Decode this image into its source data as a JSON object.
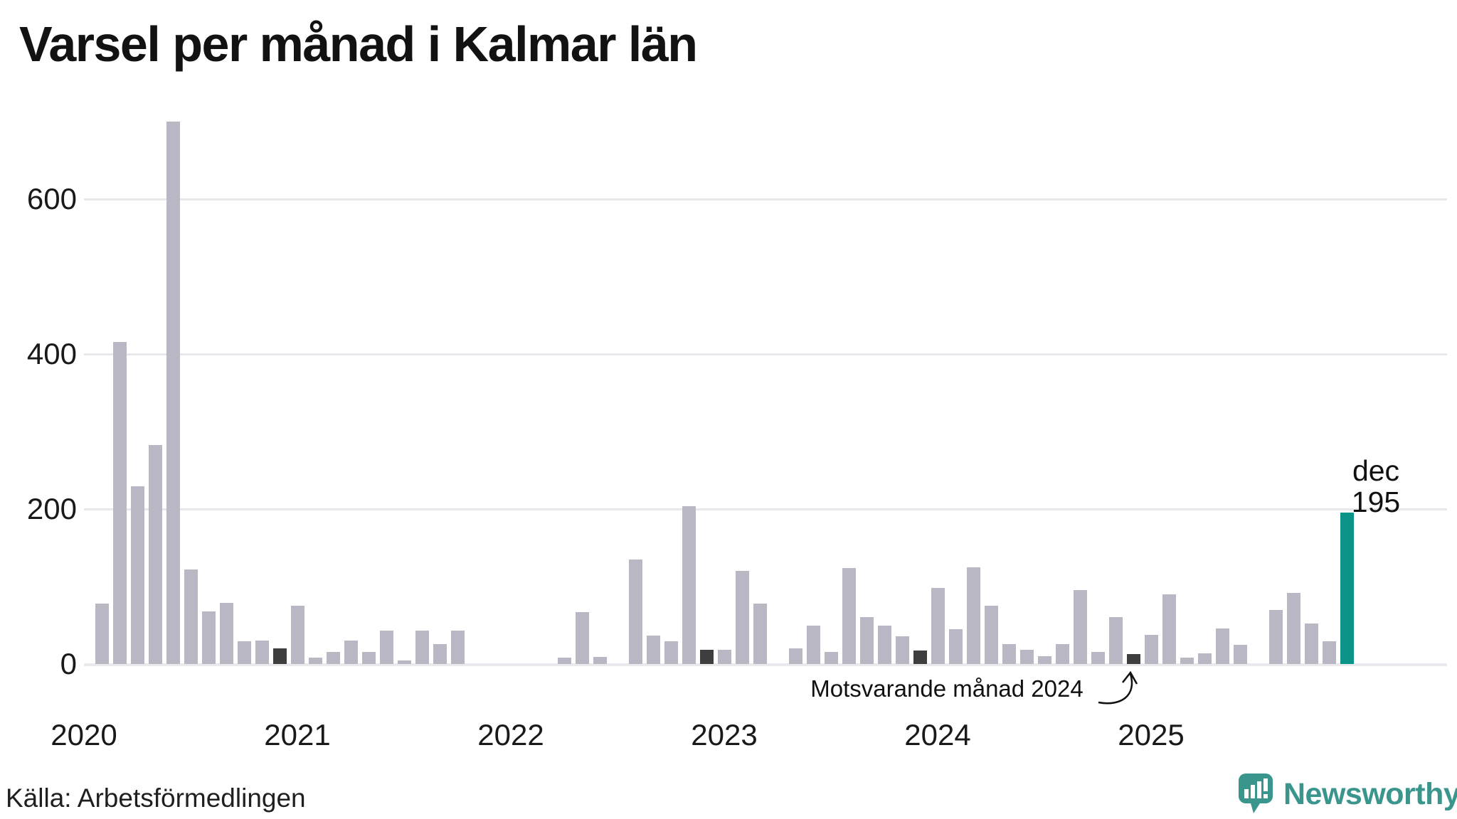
{
  "title": "Varsel per månad i Kalmar län",
  "source_note": "Källa: Arbetsförmedlingen",
  "brand": {
    "name": "Newsworthy",
    "color": "#3a958d"
  },
  "annotation": {
    "text": "Motsvarande månad 2024"
  },
  "highlight_label": {
    "month": "dec",
    "value": "195"
  },
  "colors": {
    "bar_default": "#b9b7c4",
    "bar_dark": "#3e3e3e",
    "bar_highlight": "#0d9488",
    "gridline": "#e8e8ec",
    "text": "#1a1a1a"
  },
  "chart_data": {
    "type": "bar",
    "title": "Varsel per månad i Kalmar län",
    "xlabel": "",
    "ylabel": "",
    "x_start": {
      "year": 2020,
      "month": 1
    },
    "months_per_year": 12,
    "values": [
      0,
      78,
      416,
      229,
      283,
      700,
      122,
      68,
      79,
      29,
      30,
      20,
      75,
      8,
      16,
      30,
      16,
      43,
      5,
      43,
      26,
      43,
      0,
      0,
      0,
      0,
      0,
      8,
      67,
      9,
      0,
      135,
      37,
      29,
      204,
      18,
      18,
      120,
      78,
      0,
      20,
      50,
      16,
      124,
      61,
      50,
      36,
      17,
      98,
      45,
      125,
      75,
      26,
      18,
      10,
      26,
      95,
      16,
      61,
      13,
      38,
      90,
      8,
      14,
      46,
      25,
      0,
      70,
      92,
      52,
      29,
      195
    ],
    "year_labels": [
      "2020",
      "2021",
      "2022",
      "2023",
      "2024",
      "2025"
    ],
    "yticks": [
      0,
      200,
      400,
      600
    ],
    "ytick_labels": [
      "0",
      "200",
      "400",
      "600"
    ],
    "ylim": [
      0,
      733
    ],
    "grid": "horizontal",
    "legend": "none",
    "dark_indices": [
      11,
      35,
      47,
      59
    ],
    "highlight": {
      "index": 71,
      "label_month": "dec",
      "label_value": 195
    },
    "annotation": {
      "text": "Motsvarande månad 2024",
      "target_index": 59
    }
  }
}
